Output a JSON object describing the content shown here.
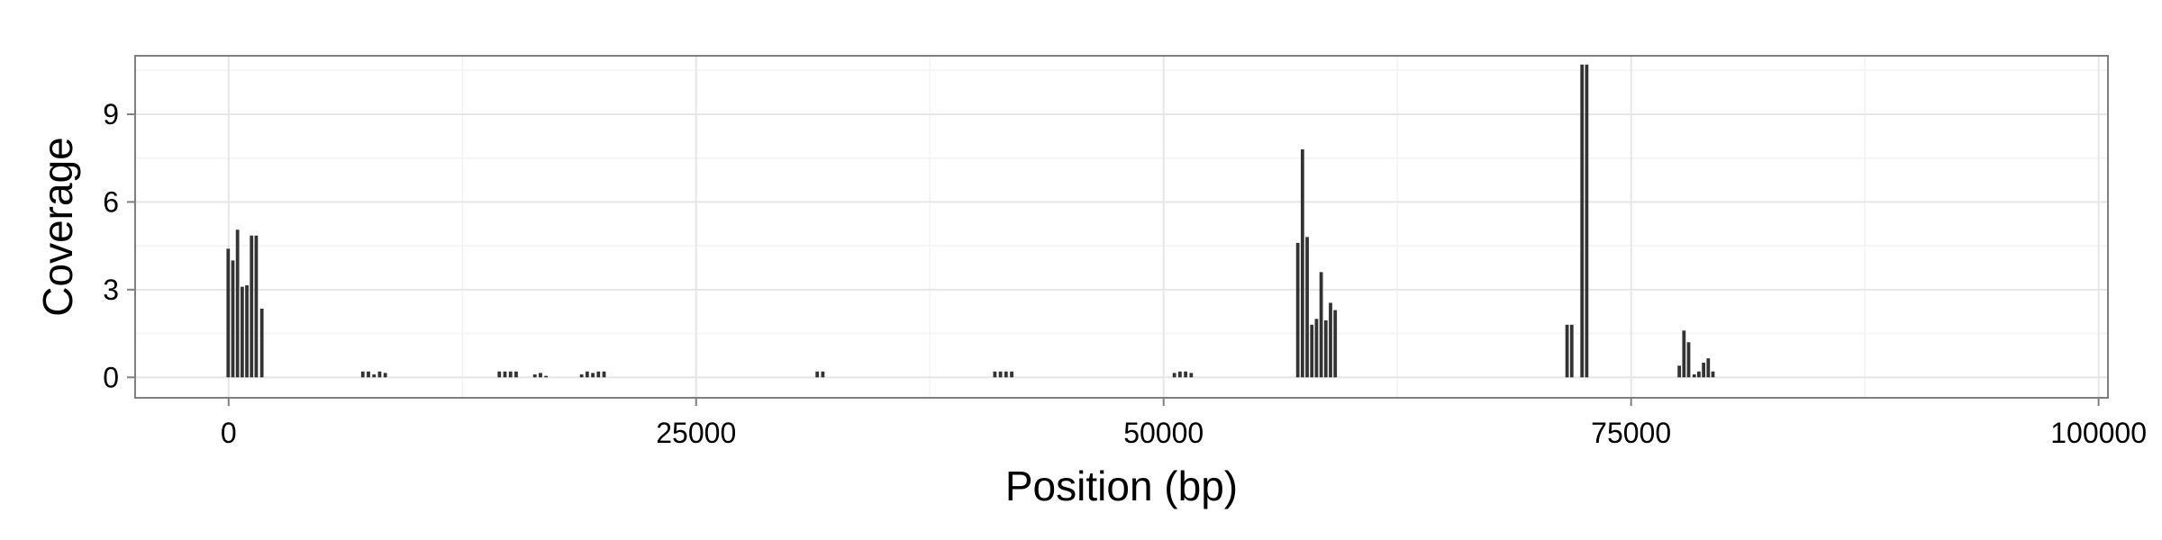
{
  "chart_data": {
    "type": "bar",
    "xlabel": "Position (bp)",
    "ylabel": "Coverage",
    "xlim": [
      -5000,
      100500
    ],
    "ylim": [
      -0.7,
      11.0
    ],
    "x_ticks": [
      0,
      25000,
      50000,
      75000,
      100000
    ],
    "x_tick_labels": [
      "0",
      "25000",
      "50000",
      "75000",
      "100000"
    ],
    "y_ticks": [
      0,
      3,
      6,
      9
    ],
    "y_tick_labels": [
      "0",
      "3",
      "6",
      "9"
    ],
    "bar_width": 230,
    "grid": true,
    "colors": {
      "bar": "#333333",
      "panel_background": "#ffffff",
      "panel_border": "#7f7f7f",
      "grid_major": "#e6e6e6",
      "grid_minor": "#f3f3f3"
    },
    "bars": [
      {
        "x": 0,
        "y": 4.4
      },
      {
        "x": 250,
        "y": 4.0
      },
      {
        "x": 500,
        "y": 5.05
      },
      {
        "x": 750,
        "y": 3.1
      },
      {
        "x": 1000,
        "y": 3.15
      },
      {
        "x": 1250,
        "y": 4.85
      },
      {
        "x": 1500,
        "y": 4.85
      },
      {
        "x": 1800,
        "y": 2.35
      },
      {
        "x": 7200,
        "y": 0.2
      },
      {
        "x": 7500,
        "y": 0.2
      },
      {
        "x": 7800,
        "y": 0.1
      },
      {
        "x": 8100,
        "y": 0.2
      },
      {
        "x": 8400,
        "y": 0.15
      },
      {
        "x": 14500,
        "y": 0.2
      },
      {
        "x": 14800,
        "y": 0.2
      },
      {
        "x": 15100,
        "y": 0.2
      },
      {
        "x": 15400,
        "y": 0.2
      },
      {
        "x": 16400,
        "y": 0.1
      },
      {
        "x": 16700,
        "y": 0.15
      },
      {
        "x": 17000,
        "y": 0.05
      },
      {
        "x": 18900,
        "y": 0.1
      },
      {
        "x": 19200,
        "y": 0.2
      },
      {
        "x": 19500,
        "y": 0.15
      },
      {
        "x": 19800,
        "y": 0.2
      },
      {
        "x": 20100,
        "y": 0.2
      },
      {
        "x": 31500,
        "y": 0.2
      },
      {
        "x": 31800,
        "y": 0.2
      },
      {
        "x": 41000,
        "y": 0.2
      },
      {
        "x": 41300,
        "y": 0.2
      },
      {
        "x": 41600,
        "y": 0.2
      },
      {
        "x": 41900,
        "y": 0.2
      },
      {
        "x": 50600,
        "y": 0.15
      },
      {
        "x": 50900,
        "y": 0.2
      },
      {
        "x": 51200,
        "y": 0.2
      },
      {
        "x": 51500,
        "y": 0.15
      },
      {
        "x": 57200,
        "y": 4.6
      },
      {
        "x": 57450,
        "y": 7.8
      },
      {
        "x": 57700,
        "y": 4.8
      },
      {
        "x": 57950,
        "y": 1.8
      },
      {
        "x": 58200,
        "y": 2.0
      },
      {
        "x": 58450,
        "y": 3.6
      },
      {
        "x": 58700,
        "y": 1.95
      },
      {
        "x": 58950,
        "y": 2.55
      },
      {
        "x": 59200,
        "y": 2.3
      },
      {
        "x": 71600,
        "y": 1.8
      },
      {
        "x": 71850,
        "y": 1.8
      },
      {
        "x": 72400,
        "y": 10.7
      },
      {
        "x": 72650,
        "y": 10.7
      },
      {
        "x": 77600,
        "y": 0.4
      },
      {
        "x": 77850,
        "y": 1.6
      },
      {
        "x": 78100,
        "y": 1.2
      },
      {
        "x": 78400,
        "y": 0.1
      },
      {
        "x": 78650,
        "y": 0.2
      },
      {
        "x": 78900,
        "y": 0.5
      },
      {
        "x": 79150,
        "y": 0.65
      },
      {
        "x": 79400,
        "y": 0.2
      }
    ]
  }
}
